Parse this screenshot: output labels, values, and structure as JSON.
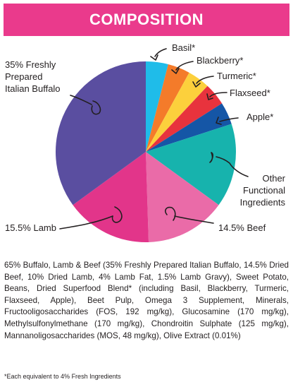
{
  "header": {
    "title": "COMPOSITION"
  },
  "chart_data": {
    "type": "pie",
    "slices": [
      {
        "label": "Basil*",
        "value": 4,
        "color": "#1fbce9"
      },
      {
        "label": "Blackberry*",
        "value": 4,
        "color": "#f47b2a"
      },
      {
        "label": "Turmeric*",
        "value": 4,
        "color": "#fcd03c"
      },
      {
        "label": "Flaxseed*",
        "value": 4,
        "color": "#e8333d"
      },
      {
        "label": "Apple*",
        "value": 4,
        "color": "#1556a6"
      },
      {
        "label": "Other Functional Ingredients",
        "value": 15,
        "color": "#17b3ad"
      },
      {
        "label": "14.5% Beef",
        "value": 14.5,
        "color": "#ea6ba8"
      },
      {
        "label": "15.5% Lamb",
        "value": 15.5,
        "color": "#e2358a"
      },
      {
        "label": "35% Freshly Prepared Italian Buffalo",
        "value": 35,
        "color": "#5a4ea0"
      }
    ],
    "labels": {
      "basil": "Basil*",
      "blackberry": "Blackberry*",
      "turmeric": "Turmeric*",
      "flaxseed": "Flaxseed*",
      "apple": "Apple*",
      "other": [
        "Other",
        "Functional",
        "Ingredients"
      ],
      "beef": "14.5% Beef",
      "lamb": "15.5% Lamb",
      "buffalo": [
        "35% Freshly",
        "Prepared",
        "Italian Buffalo"
      ]
    }
  },
  "ingredients_text": "65% Buffalo, Lamb & Beef (35% Freshly Prepared Italian Buffalo, 14.5% Dried Beef, 10% Dried Lamb, 4% Lamb Fat, 1.5% Lamb Gravy), Sweet Potato, Beans, Dried Superfood Blend* (including Basil, Blackberry, Turmeric, Flaxseed, Apple), Beet Pulp, Omega 3 Supplement, Minerals, Fructooligosaccharides (FOS, 192 mg/kg), Glucosamine (170 mg/kg), Methylsulfonylmethane (170 mg/kg), Chondroitin Sulphate (125 mg/kg), Mannanoligosaccharides (MOS, 48 mg/kg), Olive Extract (0.01%)",
  "footnote": "*Each equivalent to 4% Fresh Ingredients"
}
